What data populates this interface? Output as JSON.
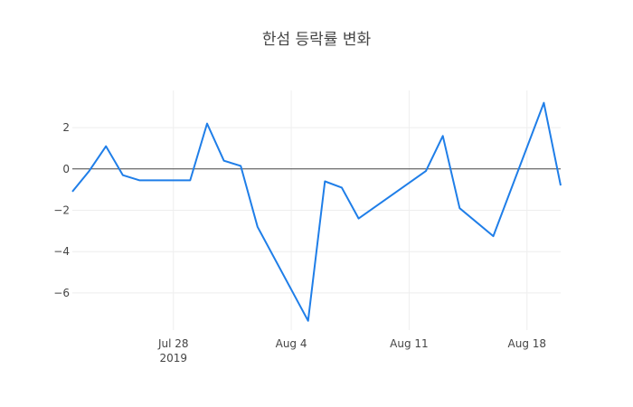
{
  "chart_data": {
    "type": "line",
    "title": "한섬 등락률 변화",
    "xlabel": "",
    "ylabel": "",
    "x_range": [
      "2019-07-22",
      "2019-08-20"
    ],
    "ylim": [
      -7.8,
      3.8
    ],
    "grid": true,
    "zero_line": true,
    "x_ticks": [
      {
        "date": "2019-07-28",
        "label": "Jul 28",
        "sublabel": "2019"
      },
      {
        "date": "2019-08-04",
        "label": "Aug 4"
      },
      {
        "date": "2019-08-11",
        "label": "Aug 11"
      },
      {
        "date": "2019-08-18",
        "label": "Aug 18"
      }
    ],
    "y_ticks": [
      {
        "value": 2,
        "label": "2"
      },
      {
        "value": 0,
        "label": "0"
      },
      {
        "value": -2,
        "label": "−2"
      },
      {
        "value": -4,
        "label": "−4"
      },
      {
        "value": -6,
        "label": "−6"
      }
    ],
    "series": [
      {
        "color": "#1f7ee8",
        "points": [
          {
            "x": "2019-07-22",
            "y": -1.1
          },
          {
            "x": "2019-07-23",
            "y": -0.1
          },
          {
            "x": "2019-07-24",
            "y": 1.1
          },
          {
            "x": "2019-07-25",
            "y": -0.3
          },
          {
            "x": "2019-07-26",
            "y": -0.55
          },
          {
            "x": "2019-07-29",
            "y": -0.55
          },
          {
            "x": "2019-07-30",
            "y": 2.2
          },
          {
            "x": "2019-07-31",
            "y": 0.4
          },
          {
            "x": "2019-08-01",
            "y": 0.15
          },
          {
            "x": "2019-08-02",
            "y": -2.8
          },
          {
            "x": "2019-08-05",
            "y": -7.35
          },
          {
            "x": "2019-08-06",
            "y": -0.6
          },
          {
            "x": "2019-08-07",
            "y": -0.9
          },
          {
            "x": "2019-08-08",
            "y": -2.4
          },
          {
            "x": "2019-08-12",
            "y": -0.1
          },
          {
            "x": "2019-08-13",
            "y": 1.6
          },
          {
            "x": "2019-08-14",
            "y": -1.9
          },
          {
            "x": "2019-08-16",
            "y": -3.25
          },
          {
            "x": "2019-08-19",
            "y": 3.2
          },
          {
            "x": "2019-08-20",
            "y": -0.8
          }
        ]
      }
    ]
  }
}
